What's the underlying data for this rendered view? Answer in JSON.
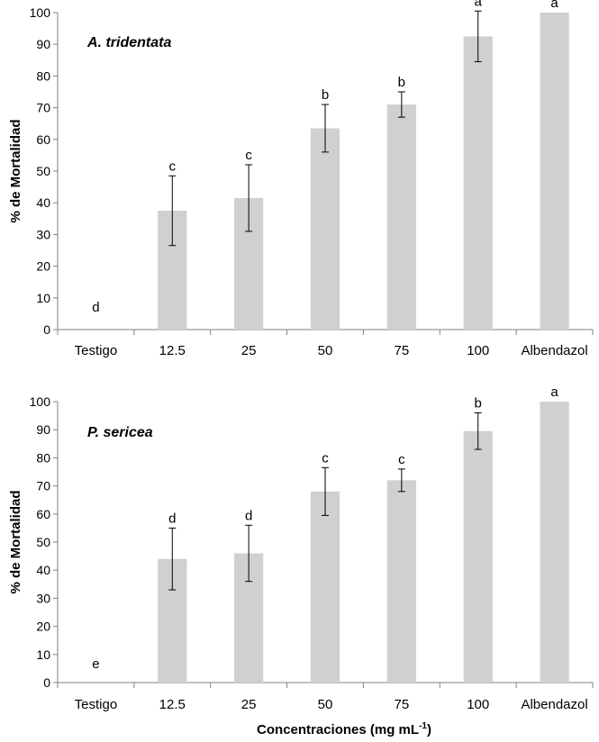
{
  "chart_data": [
    {
      "type": "bar",
      "title": "A. tridentata",
      "ylabel": "% de Mortalidad",
      "xlabel": "",
      "ylim": [
        0,
        100
      ],
      "yticks": [
        0,
        10,
        20,
        30,
        40,
        50,
        60,
        70,
        80,
        90,
        100
      ],
      "categories": [
        "Testigo",
        "12.5",
        "25",
        "50",
        "75",
        "100",
        "Albendazol"
      ],
      "values": [
        0,
        37.5,
        41.5,
        63.5,
        71,
        92.5,
        100
      ],
      "errors": [
        0,
        11,
        10.5,
        7.5,
        4,
        8,
        0
      ],
      "letters": [
        "d",
        "c",
        "c",
        "b",
        "b",
        "a",
        "a"
      ],
      "bar_color": "#d0d0d0"
    },
    {
      "type": "bar",
      "title": "P. sericea",
      "ylabel": "% de Mortalidad",
      "xlabel": "Concentraciones (mg mL",
      "xlabel_sup": "-1",
      "xlabel_end": ")",
      "ylim": [
        0,
        100
      ],
      "yticks": [
        0,
        10,
        20,
        30,
        40,
        50,
        60,
        70,
        80,
        90,
        100
      ],
      "categories": [
        "Testigo",
        "12.5",
        "25",
        "50",
        "75",
        "100",
        "Albendazol"
      ],
      "values": [
        0,
        44,
        46,
        68,
        72,
        89.5,
        100
      ],
      "errors": [
        0,
        11,
        10,
        8.5,
        4,
        6.5,
        0
      ],
      "letters": [
        "e",
        "d",
        "d",
        "c",
        "c",
        "b",
        "a"
      ],
      "bar_color": "#d0d0d0"
    }
  ]
}
